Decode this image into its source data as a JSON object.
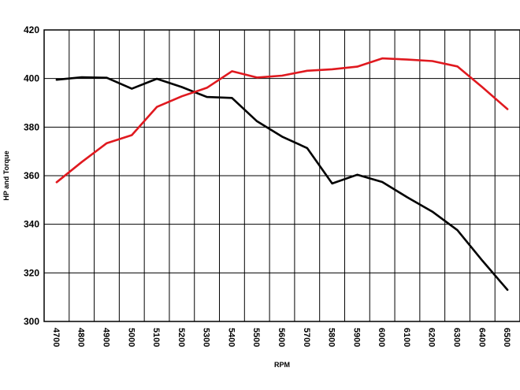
{
  "chart_data": {
    "type": "line",
    "title": "",
    "xlabel": "RPM",
    "ylabel": "HP and Torque",
    "x": [
      4700,
      4800,
      4900,
      5000,
      5100,
      5200,
      5300,
      5400,
      5500,
      5600,
      5700,
      5800,
      5900,
      6000,
      6100,
      6200,
      6300,
      6400,
      6500
    ],
    "x_tick_labels": [
      "4700",
      "4800",
      "4900",
      "5000",
      "5100",
      "5200",
      "5300",
      "5400",
      "5500",
      "5600",
      "5700",
      "5800",
      "5900",
      "6000",
      "6100",
      "6200",
      "6300",
      "6400",
      "6500"
    ],
    "ylim": [
      300,
      420
    ],
    "y_ticks": [
      300,
      320,
      340,
      360,
      380,
      400,
      420
    ],
    "y_tick_labels": [
      "300",
      "320",
      "340",
      "360",
      "380",
      "400",
      "420"
    ],
    "grid": true,
    "legend": "none",
    "series": [
      {
        "color": "#000000",
        "values": [
          399.5,
          400.5,
          400.3,
          395.8,
          399.9,
          396.5,
          392.4,
          392.0,
          382.4,
          376.1,
          371.4,
          356.8,
          360.4,
          357.4,
          351.1,
          345.2,
          337.6,
          325.0,
          313.0
        ]
      },
      {
        "color": "#e0191f",
        "values": [
          357.3,
          365.6,
          373.4,
          376.7,
          388.3,
          392.7,
          396.2,
          403.0,
          400.4,
          401.2,
          403.2,
          403.8,
          404.9,
          408.3,
          407.8,
          407.2,
          405.0,
          396.4,
          387.4
        ]
      }
    ]
  }
}
